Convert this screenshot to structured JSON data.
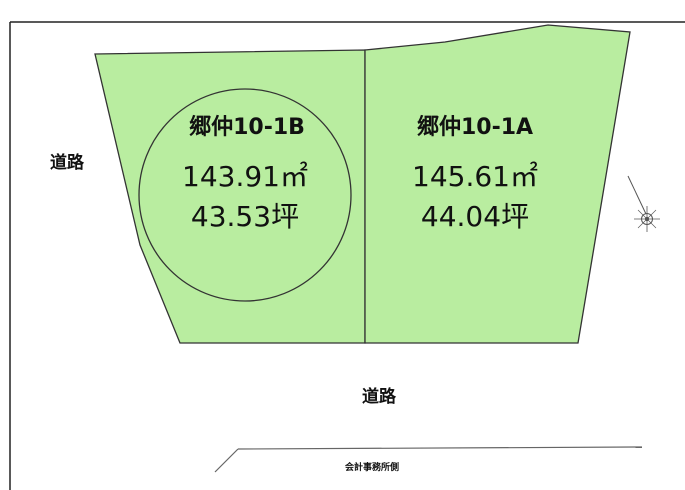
{
  "colors": {
    "lot_fill": "#b9eda0",
    "lot_outline": "#333333",
    "frame": "#222222",
    "road_line": "#666666",
    "compass": "#555555"
  },
  "icons": {
    "compass": "north-arrow-icon"
  },
  "lots": [
    {
      "id": "1B",
      "name": "郷仲10-1B",
      "area_sqm": "143.91㎡",
      "area_tsubo": "43.53坪",
      "highlighted": true
    },
    {
      "id": "1A",
      "name": "郷仲10-1A",
      "area_sqm": "145.61㎡",
      "area_tsubo": "44.04坪",
      "highlighted": false
    }
  ],
  "roads": {
    "west_label": "道路",
    "south_label": "道路"
  },
  "note": "会計事務所側"
}
